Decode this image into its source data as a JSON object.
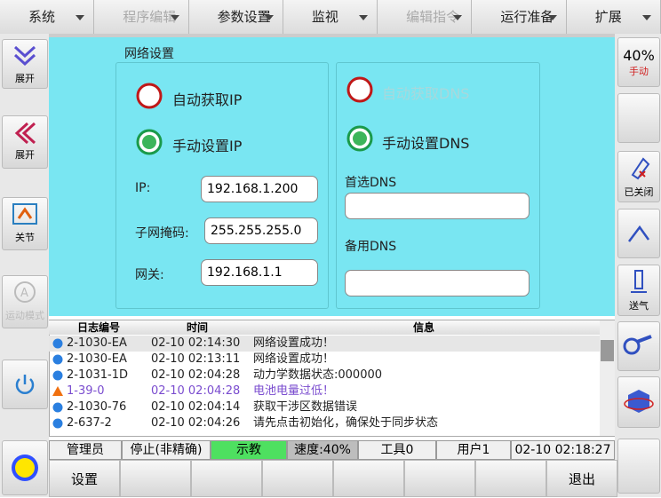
{
  "menu": [
    "系统",
    "程序编辑",
    "参数设置",
    "监视",
    "编辑指令",
    "运行准备",
    "扩展"
  ],
  "menu_disabled": [
    false,
    true,
    false,
    false,
    true,
    false,
    false
  ],
  "left_sidebar": [
    "展开",
    "展开",
    "关节",
    "运动模式"
  ],
  "right_sidebar": {
    "speed": "40%",
    "mode": "手动",
    "gripper": "已关闭",
    "air": "送气"
  },
  "panel": {
    "title": "网络设置",
    "auto_ip": "自动获取IP",
    "manual_ip": "手动设置IP",
    "ip_label": "IP:",
    "ip_value": "192.168.1.200",
    "mask_label": "子网掩码:",
    "mask_value": "255.255.255.0",
    "gateway_label": "网关:",
    "gateway_value": "192.168.1.1",
    "auto_dns": "自动获取DNS",
    "manual_dns": "手动设置DNS",
    "primary_dns": "首选DNS",
    "secondary_dns": "备用DNS"
  },
  "log": {
    "columns": [
      "日志编号",
      "时间",
      "信息"
    ],
    "rows": [
      {
        "id": "2-1030-EA",
        "time": "02-10 02:14:30",
        "message": "网络设置成功！",
        "level": "info"
      },
      {
        "id": "2-1030-EA",
        "time": "02-10 02:13:11",
        "message": "网络设置成功！",
        "level": "info"
      },
      {
        "id": "2-1031-1D",
        "time": "02-10 02:04:28",
        "message": "动力学数据状态:000000",
        "level": "info"
      },
      {
        "id": "1-39-0",
        "time": "02-10 02:04:28",
        "message": "电池电量过低！",
        "level": "warning"
      },
      {
        "id": "2-1030-76",
        "time": "02-10 02:04:14",
        "message": "获取干涉区数据错误",
        "level": "info"
      },
      {
        "id": "2-637-2",
        "time": "02-10 02:04:26",
        "message": "请先点击初始化，确保处于同步状态",
        "level": "info"
      }
    ]
  },
  "status_bar": [
    "管理员",
    "停止(非精确)",
    "示教",
    "速度:40%",
    "工具0",
    "用户1",
    "02-10 02:18:27"
  ],
  "bottom_buttons": {
    "left": "设置",
    "right": "退出"
  }
}
